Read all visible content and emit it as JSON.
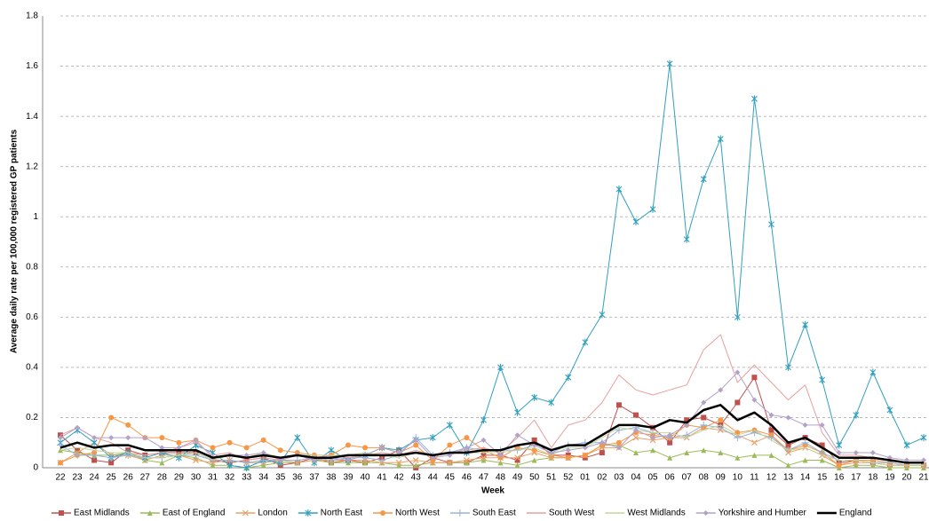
{
  "chart_data": {
    "type": "line",
    "y_label": "Average daily rate per 100,000 registered GP patients",
    "x_label": "Week",
    "categories": [
      "22",
      "23",
      "24",
      "25",
      "26",
      "27",
      "28",
      "29",
      "30",
      "31",
      "32",
      "33",
      "34",
      "35",
      "36",
      "37",
      "38",
      "39",
      "40",
      "41",
      "42",
      "43",
      "44",
      "45",
      "46",
      "47",
      "48",
      "49",
      "50",
      "51",
      "52",
      "01",
      "02",
      "03",
      "04",
      "05",
      "06",
      "07",
      "08",
      "09",
      "10",
      "11",
      "12",
      "13",
      "14",
      "15",
      "16",
      "17",
      "18",
      "19",
      "20",
      "21"
    ],
    "ylim": [
      0,
      1.8
    ],
    "yticks": [
      0,
      0.2,
      0.4,
      0.6,
      0.8,
      1,
      1.2,
      1.4,
      1.6,
      1.8
    ],
    "grid": true,
    "legend": "bottom",
    "series": [
      {
        "name": "East Midlands",
        "color": "#c0504d",
        "marker": "square",
        "values": [
          0.13,
          0.07,
          0.03,
          0.02,
          0.07,
          0.05,
          0.06,
          0.06,
          0.06,
          0.03,
          0.02,
          0.03,
          0.04,
          0.01,
          0.02,
          0.04,
          0.02,
          0.03,
          0.02,
          0.04,
          0.07,
          0.0,
          0.04,
          0.02,
          0.02,
          0.05,
          0.05,
          0.03,
          0.11,
          0.05,
          0.05,
          0.04,
          0.06,
          0.25,
          0.21,
          0.16,
          0.1,
          0.19,
          0.2,
          0.17,
          0.26,
          0.36,
          0.15,
          0.09,
          0.12,
          0.09,
          0.02,
          0.03,
          0.02,
          0.01,
          0.01,
          0.01
        ]
      },
      {
        "name": "East of England",
        "color": "#9bbb59",
        "marker": "triangle",
        "values": [
          0.07,
          0.06,
          0.05,
          0.05,
          0.06,
          0.03,
          0.02,
          0.05,
          0.04,
          0.01,
          0.01,
          0.0,
          0.01,
          0.02,
          0.02,
          0.03,
          0.02,
          0.02,
          0.02,
          0.02,
          0.01,
          0.01,
          0.02,
          0.02,
          0.02,
          0.03,
          0.02,
          0.01,
          0.03,
          0.04,
          0.04,
          0.05,
          0.09,
          0.09,
          0.06,
          0.07,
          0.04,
          0.06,
          0.07,
          0.06,
          0.04,
          0.05,
          0.05,
          0.01,
          0.03,
          0.03,
          0.0,
          0.01,
          0.01,
          0.0,
          0.0,
          0.0
        ]
      },
      {
        "name": "London",
        "color": "#e8a26a",
        "marker": "x",
        "values": [
          0.02,
          0.06,
          0.1,
          0.05,
          0.05,
          0.03,
          0.05,
          0.05,
          0.03,
          0.02,
          0.03,
          0.02,
          0.02,
          0.03,
          0.02,
          0.03,
          0.03,
          0.03,
          0.03,
          0.02,
          0.02,
          0.03,
          0.02,
          0.02,
          0.03,
          0.04,
          0.04,
          0.04,
          0.06,
          0.04,
          0.04,
          0.05,
          0.08,
          0.08,
          0.12,
          0.11,
          0.12,
          0.12,
          0.16,
          0.15,
          0.13,
          0.1,
          0.13,
          0.06,
          0.08,
          0.05,
          0.01,
          0.02,
          0.02,
          0.01,
          0.01,
          0.01
        ]
      },
      {
        "name": "North East",
        "color": "#31a0bd",
        "marker": "star",
        "values": [
          0.1,
          0.15,
          0.1,
          0.04,
          0.06,
          0.04,
          0.06,
          0.04,
          0.09,
          0.06,
          0.01,
          0.0,
          0.03,
          0.02,
          0.12,
          0.02,
          0.07,
          0.03,
          0.05,
          0.08,
          0.07,
          0.11,
          0.12,
          0.17,
          0.06,
          0.19,
          0.4,
          0.22,
          0.28,
          0.26,
          0.36,
          0.5,
          0.61,
          1.11,
          0.98,
          1.03,
          1.61,
          0.91,
          1.15,
          1.31,
          0.6,
          1.47,
          0.97,
          0.4,
          0.57,
          0.35,
          0.09,
          0.21,
          0.38,
          0.23,
          0.09,
          0.12
        ]
      },
      {
        "name": "North West",
        "color": "#f79646",
        "marker": "circle",
        "values": [
          0.02,
          0.05,
          0.06,
          0.2,
          0.17,
          0.12,
          0.12,
          0.1,
          0.11,
          0.08,
          0.1,
          0.08,
          0.11,
          0.07,
          0.06,
          0.05,
          0.05,
          0.09,
          0.08,
          0.08,
          0.06,
          0.09,
          0.03,
          0.09,
          0.12,
          0.07,
          0.04,
          0.08,
          0.07,
          0.05,
          0.04,
          0.05,
          0.09,
          0.1,
          0.14,
          0.13,
          0.12,
          0.17,
          0.16,
          0.19,
          0.14,
          0.15,
          0.13,
          0.07,
          0.09,
          0.06,
          0.01,
          0.03,
          0.03,
          0.02,
          0.01,
          0.01
        ]
      },
      {
        "name": "South East",
        "color": "#95b3d7",
        "marker": "plus",
        "values": [
          0.09,
          0.05,
          0.05,
          0.04,
          0.05,
          0.04,
          0.04,
          0.05,
          0.05,
          0.03,
          0.03,
          0.02,
          0.03,
          0.03,
          0.03,
          0.04,
          0.03,
          0.04,
          0.04,
          0.03,
          0.05,
          0.12,
          0.05,
          0.06,
          0.08,
          0.07,
          0.07,
          0.07,
          0.09,
          0.06,
          0.09,
          0.1,
          0.1,
          0.15,
          0.16,
          0.14,
          0.12,
          0.13,
          0.17,
          0.16,
          0.12,
          0.14,
          0.12,
          0.07,
          0.1,
          0.06,
          0.03,
          0.03,
          0.02,
          0.02,
          0.01,
          0.01
        ]
      },
      {
        "name": "South West",
        "color": "#e6a09e",
        "marker": "dash",
        "values": [
          0.13,
          0.16,
          0.12,
          0.1,
          0.06,
          0.05,
          0.06,
          0.08,
          0.1,
          0.05,
          0.06,
          0.03,
          0.04,
          0.03,
          0.05,
          0.04,
          0.05,
          0.04,
          0.05,
          0.06,
          0.05,
          0.07,
          0.05,
          0.06,
          0.07,
          0.08,
          0.06,
          0.12,
          0.19,
          0.08,
          0.17,
          0.19,
          0.26,
          0.37,
          0.31,
          0.29,
          0.31,
          0.33,
          0.47,
          0.53,
          0.34,
          0.41,
          0.34,
          0.27,
          0.33,
          0.14,
          0.05,
          0.05,
          0.04,
          0.03,
          0.02,
          0.02
        ]
      },
      {
        "name": "West Midlands",
        "color": "#c3d69b",
        "marker": "dash",
        "values": [
          0.07,
          0.08,
          0.07,
          0.06,
          0.06,
          0.04,
          0.04,
          0.05,
          0.06,
          0.03,
          0.05,
          0.04,
          0.06,
          0.04,
          0.05,
          0.05,
          0.05,
          0.05,
          0.06,
          0.05,
          0.04,
          0.06,
          0.05,
          0.06,
          0.06,
          0.06,
          0.06,
          0.07,
          0.08,
          0.05,
          0.08,
          0.08,
          0.12,
          0.16,
          0.15,
          0.14,
          0.14,
          0.12,
          0.15,
          0.17,
          0.13,
          0.15,
          0.11,
          0.07,
          0.08,
          0.05,
          0.03,
          0.03,
          0.02,
          0.01,
          0.01,
          0.01
        ]
      },
      {
        "name": "Yorkshire and Humber",
        "color": "#b3a2c7",
        "marker": "diamond",
        "values": [
          0.12,
          0.16,
          0.12,
          0.12,
          0.12,
          0.12,
          0.08,
          0.08,
          0.11,
          0.04,
          0.05,
          0.05,
          0.06,
          0.03,
          0.05,
          0.03,
          0.04,
          0.03,
          0.05,
          0.08,
          0.06,
          0.11,
          0.04,
          0.05,
          0.08,
          0.11,
          0.05,
          0.13,
          0.09,
          0.06,
          0.07,
          0.08,
          0.1,
          0.08,
          0.15,
          0.12,
          0.13,
          0.17,
          0.26,
          0.31,
          0.38,
          0.27,
          0.21,
          0.2,
          0.17,
          0.17,
          0.06,
          0.06,
          0.06,
          0.04,
          0.03,
          0.03
        ]
      },
      {
        "name": "England",
        "color": "#000000",
        "marker": "none",
        "width": 2.5,
        "values": [
          0.08,
          0.1,
          0.08,
          0.09,
          0.09,
          0.07,
          0.07,
          0.07,
          0.07,
          0.04,
          0.05,
          0.04,
          0.05,
          0.04,
          0.05,
          0.04,
          0.04,
          0.05,
          0.05,
          0.05,
          0.05,
          0.06,
          0.05,
          0.06,
          0.06,
          0.07,
          0.07,
          0.09,
          0.1,
          0.07,
          0.09,
          0.09,
          0.13,
          0.17,
          0.17,
          0.16,
          0.19,
          0.18,
          0.23,
          0.25,
          0.19,
          0.22,
          0.17,
          0.1,
          0.12,
          0.08,
          0.04,
          0.04,
          0.04,
          0.03,
          0.02,
          0.02
        ]
      }
    ]
  }
}
